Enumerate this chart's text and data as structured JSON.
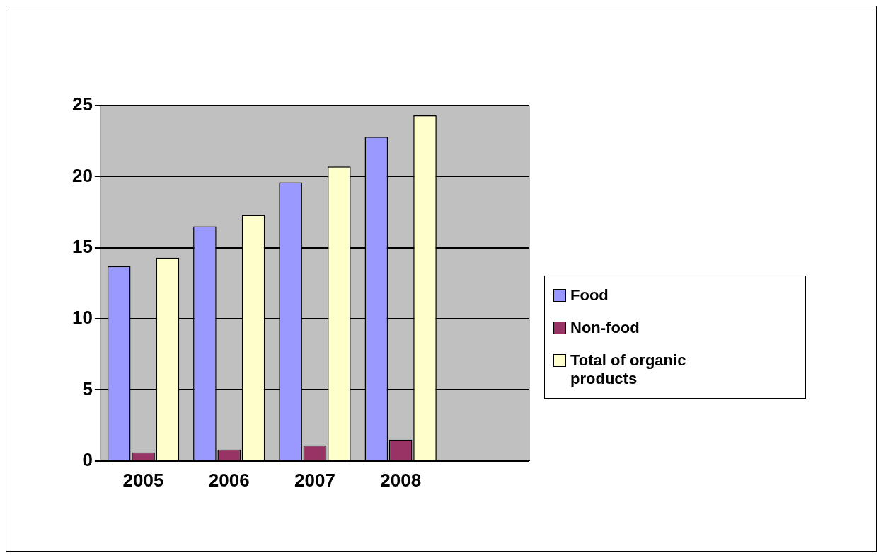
{
  "chart_data": {
    "type": "bar",
    "categories": [
      "2005",
      "2006",
      "2007",
      "2008",
      null
    ],
    "series": [
      {
        "name": "Food",
        "color": "#9999ff",
        "values": [
          13.7,
          16.5,
          19.6,
          22.8,
          null
        ]
      },
      {
        "name": "Non-food",
        "color": "#993366",
        "values": [
          0.6,
          0.8,
          1.1,
          1.5,
          null
        ]
      },
      {
        "name": "Total of organic products",
        "color": "#ffffcc",
        "values": [
          14.3,
          17.3,
          20.7,
          24.3,
          null
        ]
      }
    ],
    "ylim": [
      0,
      25
    ],
    "yticks": [
      0,
      5,
      10,
      15,
      20,
      25
    ],
    "grid": "y",
    "legend": "right"
  }
}
